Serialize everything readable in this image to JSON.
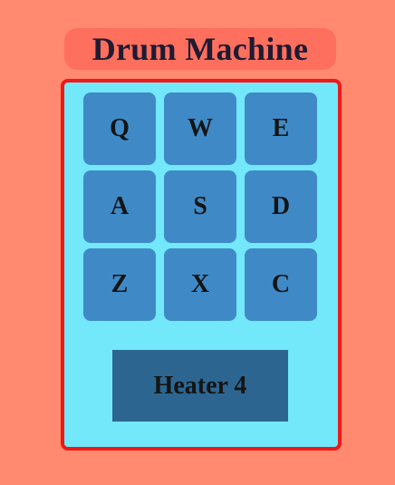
{
  "app": {
    "title": "Drum Machine"
  },
  "pads": [
    "Q",
    "W",
    "E",
    "A",
    "S",
    "D",
    "Z",
    "X",
    "C"
  ],
  "display": {
    "text": "Heater 4"
  },
  "colors": {
    "background": "#FF8A70",
    "title_bg": "#FF6F5E",
    "machine_bg": "#72E8FA",
    "machine_border": "#F01818",
    "pad": "#3F8AC6",
    "display_bg": "#2C6690",
    "text": "#141414"
  }
}
